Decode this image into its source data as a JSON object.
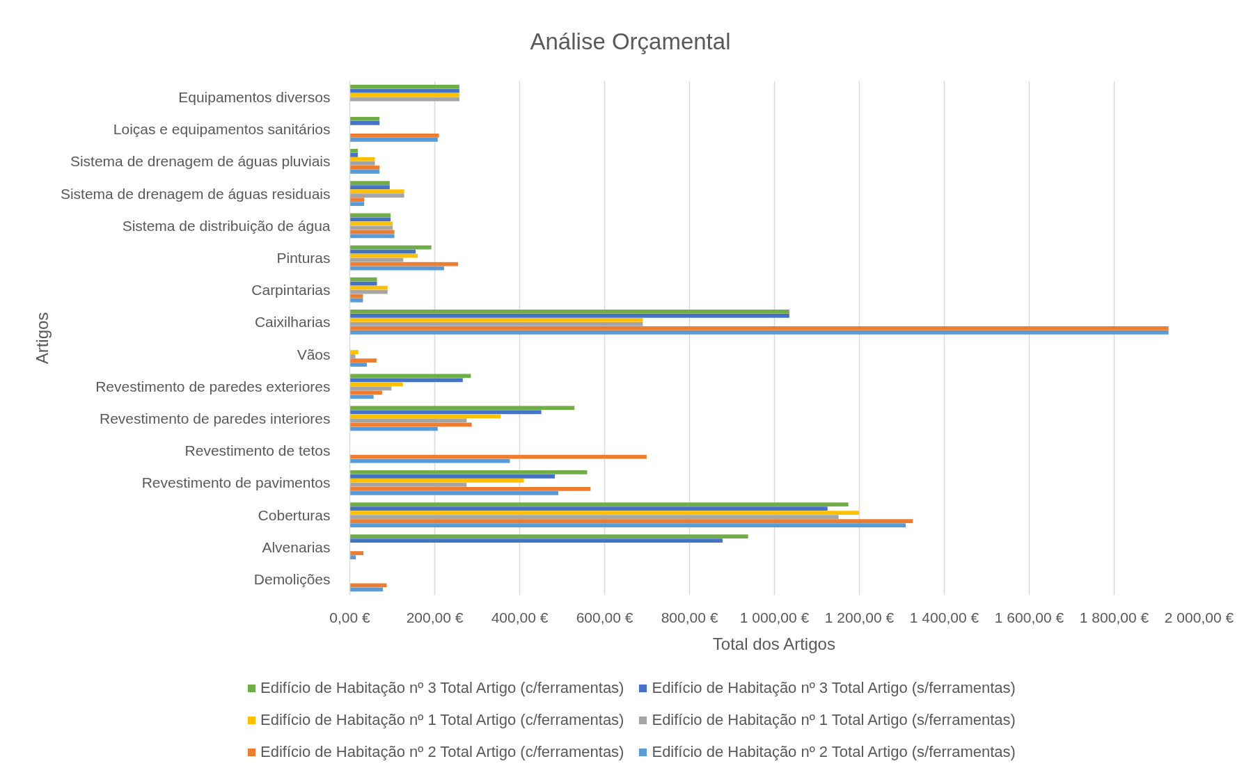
{
  "chart_data": {
    "type": "bar",
    "orientation": "horizontal",
    "title": "Análise Orçamental",
    "xlabel": "Total dos Artigos",
    "ylabel": "Artigos",
    "categories": [
      "Equipamentos diversos",
      "Loiças e equipamentos sanitários",
      "Sistema de drenagem de águas pluviais",
      "Sistema de drenagem de águas residuais",
      "Sistema de distribuição de água",
      "Pinturas",
      "Carpintarias",
      "Caixilharias",
      "Vãos",
      "Revestimento de paredes exteriores",
      "Revestimento de paredes interiores",
      "Revestimento de tetos",
      "Revestimento de pavimentos",
      "Coberturas",
      "Alvenarias",
      "Demolições"
    ],
    "series": [
      {
        "name": "Edifício de Habitação nº 3 Total Artigo (c/ferramentas)",
        "color": "#70ad47",
        "values": [
          258,
          70,
          19,
          94,
          96,
          192,
          64,
          1035,
          null,
          285,
          529,
          null,
          559,
          1174,
          938,
          null
        ]
      },
      {
        "name": "Edifício de Habitação nº 3 Total Artigo (s/ferramentas)",
        "color": "#4472c4",
        "values": [
          258,
          70,
          19,
          94,
          96,
          155,
          64,
          1035,
          null,
          266,
          451,
          null,
          483,
          1125,
          878,
          null
        ]
      },
      {
        "name": "Edifício de Habitação nº 1 Total Artigo (c/ferramentas)",
        "color": "#ffc000",
        "values": [
          258,
          null,
          59,
          128,
          101,
          160,
          89,
          690,
          20,
          125,
          355,
          null,
          410,
          1199,
          null,
          null
        ]
      },
      {
        "name": "Edifício de Habitação nº 1 Total Artigo (s/ferramentas)",
        "color": "#a5a5a5",
        "values": [
          258,
          null,
          59,
          128,
          101,
          126,
          89,
          690,
          13,
          98,
          275,
          null,
          275,
          1151,
          null,
          null
        ]
      },
      {
        "name": "Edifício de Habitação nº 2 Total Artigo (c/ferramentas)",
        "color": "#ed7d31",
        "values": [
          null,
          210,
          70,
          34,
          105,
          255,
          31,
          1928,
          63,
          76,
          287,
          699,
          567,
          1326,
          32,
          87
        ]
      },
      {
        "name": "Edifício de Habitação nº 2 Total Artigo (s/ferramentas)",
        "color": "#5b9bd5",
        "values": [
          null,
          207,
          70,
          34,
          105,
          222,
          31,
          1928,
          40,
          56,
          207,
          377,
          491,
          1309,
          14,
          78
        ]
      }
    ],
    "xlim": [
      0,
      2000
    ],
    "xticks": [
      {
        "value": 0,
        "label": "0,00 €"
      },
      {
        "value": 200,
        "label": "200,00 €"
      },
      {
        "value": 400,
        "label": "400,00 €"
      },
      {
        "value": 600,
        "label": "600,00 €"
      },
      {
        "value": 800,
        "label": "800,00 €"
      },
      {
        "value": 1000,
        "label": "1 000,00 €"
      },
      {
        "value": 1200,
        "label": "1 200,00 €"
      },
      {
        "value": 1400,
        "label": "1 400,00 €"
      },
      {
        "value": 1600,
        "label": "1 600,00 €"
      },
      {
        "value": 1800,
        "label": "1 800,00 €"
      },
      {
        "value": 2000,
        "label": "2 000,00 €"
      }
    ],
    "grid": "x",
    "legend": "bottom"
  }
}
